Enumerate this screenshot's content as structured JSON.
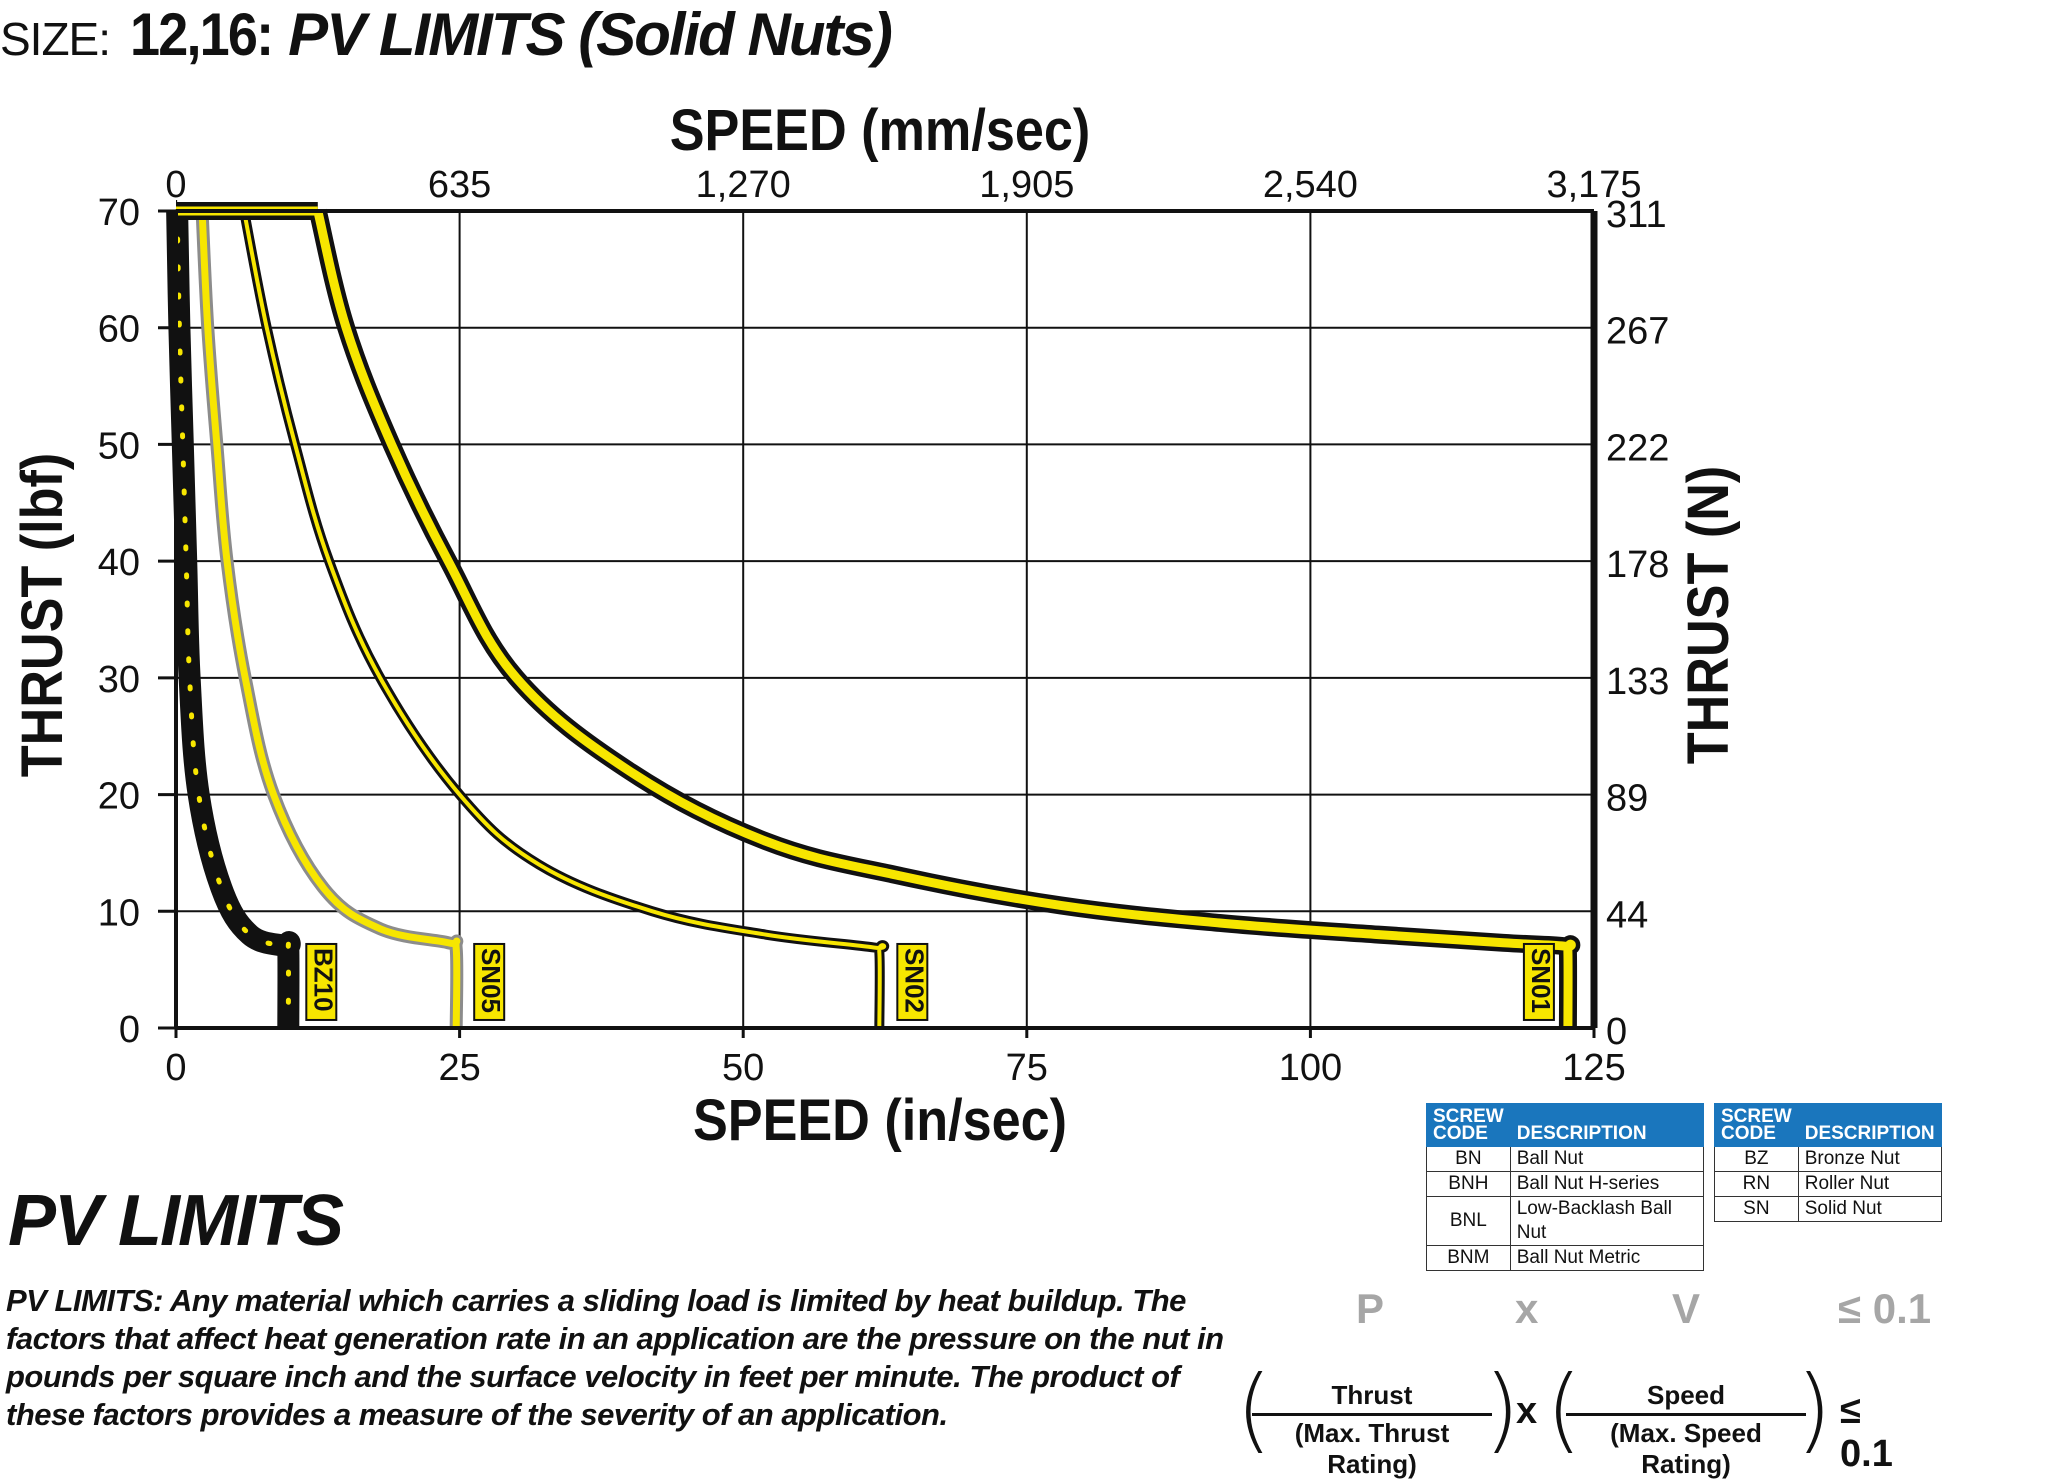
{
  "header": {
    "size_prefix": "SIZE:",
    "size_code": "12,16:",
    "title": "PV LIMITS (Solid Nuts)"
  },
  "chart_data": {
    "type": "line",
    "title": "",
    "xlabel": "SPEED (in/sec)",
    "x2label": "SPEED (mm/sec)",
    "ylabel": "THRUST (lbf)",
    "y2label": "THRUST (N)",
    "xlim": [
      0,
      125
    ],
    "ylim": [
      0,
      70
    ],
    "x_ticks": [
      "0",
      "25",
      "50",
      "75",
      "100",
      "125"
    ],
    "x2_ticks": [
      "0",
      "635",
      "1,270",
      "1,905",
      "2,540",
      "3,175"
    ],
    "y_ticks": [
      "0",
      "10",
      "20",
      "30",
      "40",
      "50",
      "60",
      "70"
    ],
    "y2_ticks": [
      "0",
      "44",
      "89",
      "133",
      "178",
      "222",
      "267",
      "311"
    ],
    "grid": true,
    "series": [
      {
        "name": "BZ10",
        "style": "black-dotted",
        "color": "#111111",
        "accent": "#f7e600",
        "points": [
          [
            0.1,
            70
          ],
          [
            0.3,
            60
          ],
          [
            0.6,
            50
          ],
          [
            0.9,
            40
          ],
          [
            1.2,
            30
          ],
          [
            2,
            20
          ],
          [
            4,
            12
          ],
          [
            6.5,
            8
          ],
          [
            9.7,
            7
          ],
          [
            9.9,
            6.8
          ],
          [
            9.9,
            0
          ]
        ]
      },
      {
        "name": "SN05",
        "style": "gray-yellow",
        "color": "#8c8c8c",
        "accent": "#f7e600",
        "points": [
          [
            2.3,
            70
          ],
          [
            2.8,
            60
          ],
          [
            3.6,
            50
          ],
          [
            4.5,
            40
          ],
          [
            6.1,
            30
          ],
          [
            8.6,
            20
          ],
          [
            13,
            12
          ],
          [
            18,
            8.5
          ],
          [
            24,
            7.3
          ],
          [
            24.7,
            6.8
          ],
          [
            24.7,
            0
          ]
        ]
      },
      {
        "name": "SN02",
        "style": "black-yellow-thin",
        "color": "#111111",
        "accent": "#f7e600",
        "points": [
          [
            6,
            70
          ],
          [
            8,
            60
          ],
          [
            10.5,
            50
          ],
          [
            13.5,
            40
          ],
          [
            18,
            30
          ],
          [
            25,
            20
          ],
          [
            32,
            14
          ],
          [
            42,
            10
          ],
          [
            52,
            8
          ],
          [
            61.5,
            6.9
          ],
          [
            62,
            6.5
          ],
          [
            62,
            0
          ]
        ]
      },
      {
        "name": "SN01",
        "style": "black-yellow-thick",
        "color": "#111111",
        "accent": "#f7e600",
        "points": [
          [
            12.5,
            70
          ],
          [
            15,
            60
          ],
          [
            19,
            50
          ],
          [
            24,
            40
          ],
          [
            30,
            30
          ],
          [
            40,
            22
          ],
          [
            52,
            16
          ],
          [
            64,
            13
          ],
          [
            78,
            10.5
          ],
          [
            92,
            9
          ],
          [
            106,
            8
          ],
          [
            117,
            7.3
          ],
          [
            122.5,
            7
          ],
          [
            122.7,
            6.5
          ],
          [
            122.7,
            0
          ]
        ]
      }
    ]
  },
  "pv": {
    "heading": "PV LIMITS",
    "paragraph": "PV LIMITS: Any material which carries a sliding load is limited by heat buildup. The factors that affect heat generation rate in an application are the pressure on the nut in pounds per square inch and the surface velocity in feet per minute. The product of these factors provides a measure of the severity of an application."
  },
  "tables": {
    "header_code": "SCREW CODE",
    "header_desc": "DESCRIPTION",
    "left": [
      {
        "code": "BN",
        "desc": "Ball Nut"
      },
      {
        "code": "BNH",
        "desc": "Ball Nut H-series"
      },
      {
        "code": "BNL",
        "desc": "Low-Backlash Ball Nut"
      },
      {
        "code": "BNM",
        "desc": "Ball Nut Metric"
      }
    ],
    "right": [
      {
        "code": "BZ",
        "desc": "Bronze Nut"
      },
      {
        "code": "RN",
        "desc": "Roller Nut"
      },
      {
        "code": "SN",
        "desc": "Solid Nut"
      }
    ]
  },
  "formula": {
    "p": "P",
    "x": "x",
    "v": "V",
    "limit": "≤ 0.1",
    "thrust": "Thrust",
    "max_thrust": "(Max. Thrust Rating)",
    "speed": "Speed",
    "max_speed": "(Max. Speed Rating)",
    "times": "x",
    "limit_main": "≤ 0.1"
  },
  "colors": {
    "accent": "#f7e600",
    "table_header": "#1a76bd",
    "gray": "#a6a6a6"
  }
}
